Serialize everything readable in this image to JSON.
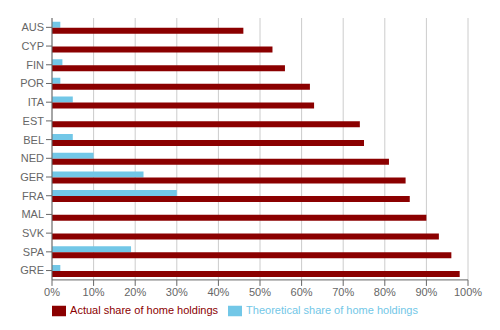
{
  "chart_data": {
    "type": "bar",
    "orientation": "horizontal",
    "categories": [
      "GRE",
      "SPA",
      "SVK",
      "MAL",
      "FRA",
      "GER",
      "NED",
      "BEL",
      "EST",
      "ITA",
      "POR",
      "FIN",
      "CYP",
      "AUS"
    ],
    "series": [
      {
        "name": "Theoretical share of home holdings",
        "color": "#72c7e7",
        "values": [
          2,
          19,
          0,
          0,
          30,
          22,
          10,
          5,
          0,
          5,
          2,
          2.5,
          0,
          2
        ]
      },
      {
        "name": "Actual share of home holdings",
        "color": "#8B0000",
        "values": [
          98,
          96,
          93,
          90,
          86,
          85,
          81,
          75,
          74,
          63,
          62,
          56,
          53,
          46
        ]
      }
    ],
    "xlim": [
      0,
      100
    ],
    "xticks": [
      {
        "value": 0,
        "label": "0%"
      },
      {
        "value": 10,
        "label": "10%"
      },
      {
        "value": 20,
        "label": "20%"
      },
      {
        "value": 30,
        "label": "30%"
      },
      {
        "value": 40,
        "label": "40%"
      },
      {
        "value": 50,
        "label": "50%"
      },
      {
        "value": 60,
        "label": "60%"
      },
      {
        "value": 70,
        "label": "70%"
      },
      {
        "value": 80,
        "label": "80%"
      },
      {
        "value": 90,
        "label": "90%"
      },
      {
        "value": 100,
        "label": "100%"
      }
    ],
    "grid": true,
    "legend": "bottom"
  }
}
